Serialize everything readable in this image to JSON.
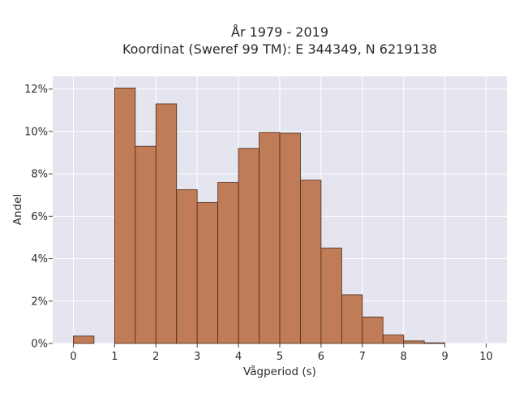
{
  "chart_data": {
    "type": "bar",
    "title_lines": [
      "År 1979 - 2019",
      "Koordinat (Sweref 99 TM): E 344349, N 6219138"
    ],
    "xlabel": "Vågperiod (s)",
    "ylabel": "Andel",
    "x_ticks": [
      "0",
      "1",
      "2",
      "3",
      "4",
      "5",
      "6",
      "7",
      "8",
      "9",
      "10"
    ],
    "y_ticks": [
      "0%",
      "2%",
      "4%",
      "6%",
      "8%",
      "10%",
      "12%"
    ],
    "y_tick_values": [
      0,
      2,
      4,
      6,
      8,
      10,
      12
    ],
    "xlim": [
      -0.5,
      10.5
    ],
    "ylim": [
      0,
      12.6
    ],
    "bin_width": 0.5,
    "bin_starts": [
      0,
      0.5,
      1.0,
      1.5,
      2.0,
      2.5,
      3.0,
      3.5,
      4.0,
      4.5,
      5.0,
      5.5,
      6.0,
      6.5,
      7.0,
      7.5,
      8.0,
      8.5,
      9.0,
      9.5
    ],
    "values": [
      0.35,
      0,
      12.05,
      9.3,
      11.3,
      7.25,
      6.65,
      7.6,
      9.2,
      9.95,
      9.92,
      7.7,
      4.5,
      2.3,
      1.25,
      0.4,
      0.12,
      0.03,
      0,
      0
    ],
    "grid": true,
    "colors": {
      "bar_fill": "#c07b57",
      "bar_edge": "#4a2a1a",
      "plot_bg": "#e5e5ef",
      "grid": "#ffffff"
    }
  }
}
